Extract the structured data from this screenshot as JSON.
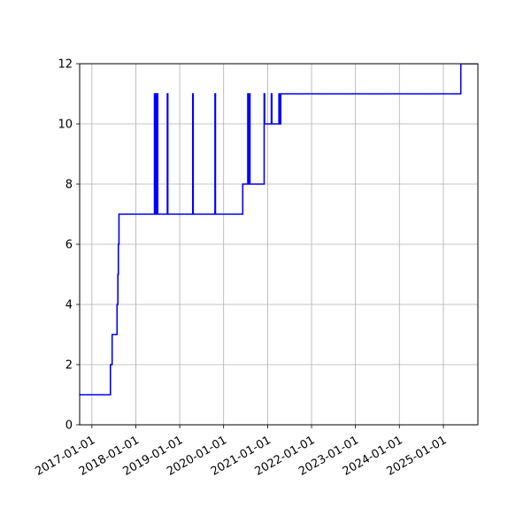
{
  "chart_data": {
    "type": "line",
    "title": "",
    "xlabel": "",
    "ylabel": "",
    "grid": true,
    "x_scale": "date",
    "xlim": [
      "2016-09-21",
      "2025-10-15"
    ],
    "ylim": [
      0,
      12
    ],
    "x_ticks": [
      "2017-01-01",
      "2018-01-01",
      "2019-01-01",
      "2020-01-01",
      "2021-01-01",
      "2022-01-01",
      "2023-01-01",
      "2024-01-01",
      "2025-01-01"
    ],
    "y_ticks": [
      0,
      2,
      4,
      6,
      8,
      10,
      12
    ],
    "y_tick_labels": [
      "0",
      "2",
      "4",
      "6",
      "8",
      "10",
      "12"
    ],
    "series": [
      {
        "color": "#0000ff",
        "step": "post",
        "points": [
          [
            "2016-09-21",
            1
          ],
          [
            "2017-06-04",
            2
          ],
          [
            "2017-06-18",
            3
          ],
          [
            "2017-07-29",
            4
          ],
          [
            "2017-08-05",
            5
          ],
          [
            "2017-08-09",
            6
          ],
          [
            "2017-08-14",
            7
          ],
          [
            "2018-06-05",
            11
          ],
          [
            "2018-06-08",
            7
          ],
          [
            "2018-06-14",
            11
          ],
          [
            "2018-06-17",
            7
          ],
          [
            "2018-06-20",
            11
          ],
          [
            "2018-06-23",
            7
          ],
          [
            "2018-06-27",
            11
          ],
          [
            "2018-07-02",
            7
          ],
          [
            "2018-09-20",
            11
          ],
          [
            "2018-09-24",
            7
          ],
          [
            "2019-04-19",
            11
          ],
          [
            "2019-04-23",
            7
          ],
          [
            "2019-10-21",
            11
          ],
          [
            "2019-10-25",
            7
          ],
          [
            "2020-06-08",
            8
          ],
          [
            "2020-07-20",
            11
          ],
          [
            "2020-07-24",
            8
          ],
          [
            "2020-08-03",
            11
          ],
          [
            "2020-08-07",
            8
          ],
          [
            "2020-12-03",
            11
          ],
          [
            "2020-12-07",
            10
          ],
          [
            "2021-02-01",
            11
          ],
          [
            "2021-02-05",
            10
          ],
          [
            "2021-04-05",
            11
          ],
          [
            "2021-04-09",
            10
          ],
          [
            "2021-04-20",
            11
          ],
          [
            "2025-05-26",
            12
          ],
          [
            "2025-10-15",
            12
          ]
        ]
      }
    ]
  }
}
